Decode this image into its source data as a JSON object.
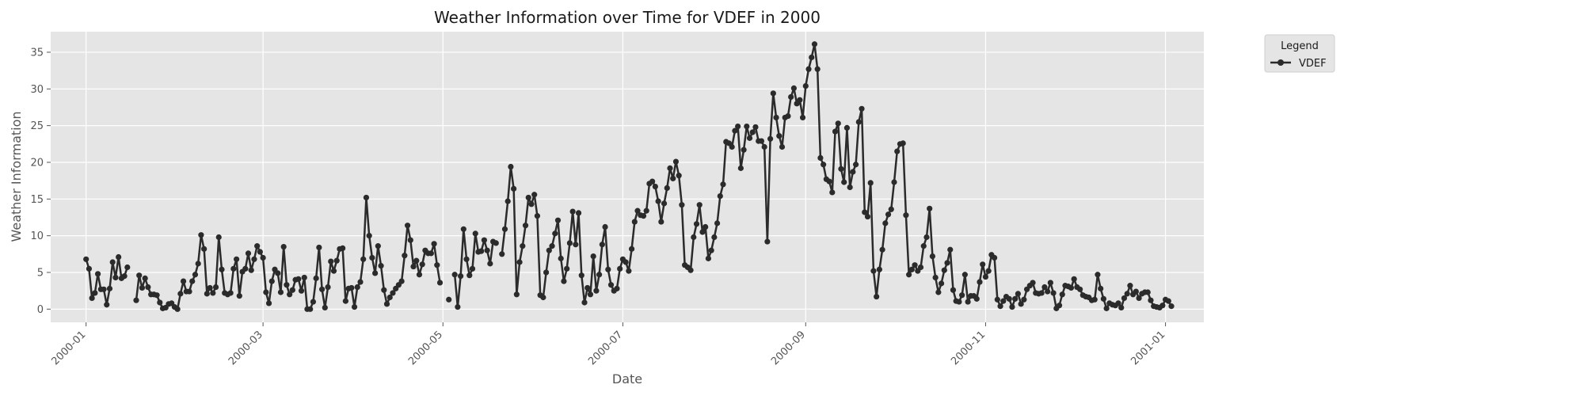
{
  "chart_data": {
    "type": "line",
    "title": "Weather Information over Time for VDEF in 2000",
    "xlabel": "Date",
    "ylabel": "Weather Information",
    "x_range": [
      "1999-12-20",
      "2001-01-14"
    ],
    "ylim": [
      -1.8,
      37.8
    ],
    "grid": true,
    "legend_placement": "outside-top-right",
    "x_ticks": [
      "2000-01",
      "2000-03",
      "2000-05",
      "2000-07",
      "2000-09",
      "2000-11",
      "2001-01"
    ],
    "y_ticks": [
      0,
      5,
      10,
      15,
      20,
      25,
      30,
      35
    ],
    "legend": {
      "title": "Legend",
      "entries": [
        "VDEF"
      ]
    },
    "colors": {
      "line": "#2b2b2b",
      "panel": "#e5e5e5",
      "grid": "#ffffff"
    },
    "series": [
      {
        "name": "VDEF",
        "start_date": "2000-01-01",
        "values": [
          6.8,
          5.5,
          1.5,
          2.2,
          4.8,
          2.7,
          2.7,
          0.6,
          2.8,
          6.4,
          4.3,
          7.1,
          4.2,
          4.5,
          5.7,
          null,
          null,
          1.2,
          4.6,
          2.9,
          4.2,
          3.0,
          2.0,
          2.0,
          1.9,
          0.9,
          0.1,
          0.2,
          0.7,
          0.8,
          0.3,
          0.0,
          2.1,
          3.8,
          2.4,
          2.4,
          3.8,
          4.7,
          6.2,
          10.1,
          8.2,
          2.1,
          2.9,
          2.2,
          3.0,
          9.8,
          5.4,
          2.2,
          2.0,
          2.2,
          5.5,
          6.8,
          1.8,
          5.1,
          5.5,
          7.6,
          5.3,
          6.8,
          8.6,
          7.8,
          7.0,
          2.3,
          0.8,
          3.8,
          5.4,
          4.9,
          2.3,
          8.5,
          3.3,
          2.0,
          2.6,
          4.0,
          4.1,
          2.5,
          4.3,
          0.0,
          0.0,
          1.0,
          4.2,
          8.4,
          2.7,
          0.2,
          3.0,
          6.5,
          5.2,
          6.6,
          8.2,
          8.3,
          1.1,
          2.8,
          2.9,
          0.3,
          3.0,
          3.7,
          6.8,
          15.2,
          10.0,
          7.0,
          4.9,
          8.6,
          5.9,
          2.6,
          0.7,
          1.6,
          2.2,
          2.8,
          3.3,
          3.8,
          7.3,
          11.4,
          9.4,
          5.8,
          6.6,
          4.7,
          6.1,
          8.0,
          7.6,
          7.6,
          8.9,
          6.0,
          3.6,
          null,
          null,
          1.3,
          null,
          4.7,
          0.3,
          4.5,
          10.9,
          6.8,
          4.6,
          5.5,
          10.3,
          7.8,
          7.9,
          9.4,
          8.0,
          6.2,
          9.2,
          9.0,
          null,
          7.5,
          10.9,
          14.7,
          19.4,
          16.4,
          2.0,
          6.4,
          8.6,
          11.4,
          15.2,
          14.3,
          15.6,
          12.7,
          1.9,
          1.6,
          5.0,
          8.0,
          8.6,
          10.3,
          12.1,
          6.9,
          3.8,
          5.5,
          9.0,
          13.3,
          8.8,
          13.1,
          4.6,
          0.9,
          2.9,
          2.0,
          7.2,
          2.5,
          4.7,
          8.8,
          11.2,
          5.4,
          3.3,
          2.5,
          2.8,
          5.5,
          6.8,
          6.4,
          5.2,
          8.2,
          11.9,
          13.4,
          12.8,
          12.7,
          13.4,
          17.1,
          17.4,
          16.7,
          14.7,
          11.9,
          14.4,
          16.5,
          19.2,
          17.8,
          20.1,
          18.2,
          14.2,
          6.0,
          5.7,
          5.3,
          9.8,
          11.6,
          14.2,
          10.5,
          11.2,
          6.9,
          8.0,
          9.8,
          11.7,
          15.4,
          17.0,
          22.8,
          22.6,
          22.1,
          24.3,
          24.9,
          19.2,
          21.7,
          24.9,
          23.3,
          24.1,
          24.8,
          22.9,
          22.9,
          22.1,
          9.2,
          23.2,
          29.4,
          26.1,
          23.6,
          22.1,
          26.1,
          26.3,
          28.9,
          30.1,
          28.0,
          28.5,
          26.1,
          30.4,
          32.7,
          34.3,
          36.1,
          32.7,
          20.6,
          19.7,
          17.7,
          17.4,
          15.9,
          24.2,
          25.3,
          19.1,
          17.3,
          24.7,
          16.6,
          18.7,
          19.7,
          25.5,
          27.3,
          13.2,
          12.6,
          17.2,
          5.2,
          1.7,
          5.4,
          8.1,
          11.7,
          12.9,
          13.6,
          17.3,
          21.5,
          22.5,
          22.6,
          12.8,
          4.7,
          5.4,
          6.0,
          5.2,
          5.7,
          8.6,
          9.8,
          13.7,
          7.2,
          4.3,
          2.3,
          3.5,
          5.3,
          6.3,
          8.1,
          2.6,
          1.1,
          1.0,
          1.9,
          4.7,
          1.0,
          1.8,
          1.8,
          1.4,
          3.7,
          6.1,
          4.4,
          5.2,
          7.4,
          7.0,
          1.3,
          0.4,
          1.1,
          1.7,
          1.4,
          0.3,
          1.4,
          2.1,
          0.7,
          1.3,
          2.7,
          3.2,
          3.6,
          2.2,
          2.1,
          2.2,
          3.0,
          2.4,
          3.6,
          2.2,
          0.1,
          0.5,
          2.0,
          3.2,
          3.1,
          2.9,
          4.1,
          3.0,
          2.7,
          1.9,
          1.7,
          1.6,
          1.2,
          1.3,
          4.7,
          2.8,
          1.4,
          0.1,
          0.8,
          0.6,
          0.5,
          0.8,
          0.2,
          1.5,
          2.1,
          3.2,
          2.0,
          2.4,
          1.5,
          2.1,
          2.3,
          2.3,
          1.2,
          0.4,
          0.3,
          0.2,
          0.5,
          1.3,
          1.1,
          0.4
        ]
      }
    ]
  }
}
